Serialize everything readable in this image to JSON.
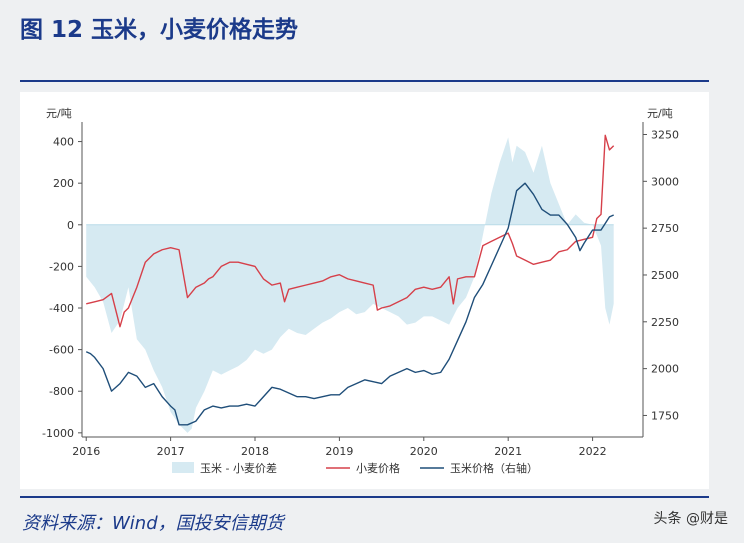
{
  "header": {
    "title": "图 12 玉米，小麦价格走势"
  },
  "footer": {
    "source": "资料来源：Wind，国投安信期货",
    "watermark": "头条 @财是"
  },
  "colors": {
    "spread": "#d6eaf2",
    "wheat": "#d6404a",
    "corn": "#1f4e79",
    "accent": "#1b3a8a"
  },
  "chart_data": {
    "type": "line",
    "left_axis": {
      "unit": "元/吨",
      "ticks": [
        400,
        200,
        0,
        -200,
        -400,
        -600,
        -800,
        -1000
      ],
      "range": [
        -1020,
        470
      ]
    },
    "right_axis": {
      "unit": "元/吨",
      "ticks": [
        3250,
        3000,
        2750,
        2500,
        2250,
        2000,
        1750
      ],
      "range": [
        1635,
        3290
      ]
    },
    "x_axis": {
      "ticks": [
        "2016",
        "2017",
        "2018",
        "2019",
        "2020",
        "2021",
        "2022"
      ],
      "range": [
        2015.95,
        2022.55
      ]
    },
    "legend": {
      "placement": "bottom"
    },
    "series": [
      {
        "name": "玉米 - 小麦价差",
        "type": "area",
        "axis": "left",
        "x": [
          2016.0,
          2016.1,
          2016.2,
          2016.3,
          2016.4,
          2016.5,
          2016.6,
          2016.7,
          2016.8,
          2016.9,
          2017.0,
          2017.1,
          2017.2,
          2017.25,
          2017.3,
          2017.4,
          2017.5,
          2017.6,
          2017.7,
          2017.8,
          2017.9,
          2018.0,
          2018.1,
          2018.2,
          2018.3,
          2018.4,
          2018.5,
          2018.6,
          2018.7,
          2018.8,
          2018.9,
          2019.0,
          2019.1,
          2019.2,
          2019.3,
          2019.4,
          2019.5,
          2019.6,
          2019.7,
          2019.8,
          2019.9,
          2020.0,
          2020.1,
          2020.2,
          2020.3,
          2020.4,
          2020.5,
          2020.6,
          2020.7,
          2020.8,
          2020.9,
          2021.0,
          2021.05,
          2021.1,
          2021.2,
          2021.3,
          2021.4,
          2021.5,
          2021.6,
          2021.7,
          2021.8,
          2021.9,
          2022.0,
          2022.1,
          2022.15,
          2022.2,
          2022.25
        ],
        "values": [
          -250,
          -300,
          -370,
          -520,
          -460,
          -300,
          -550,
          -600,
          -700,
          -780,
          -900,
          -960,
          -1000,
          -980,
          -880,
          -800,
          -700,
          -720,
          -700,
          -680,
          -650,
          -600,
          -620,
          -600,
          -540,
          -500,
          -520,
          -530,
          -500,
          -470,
          -450,
          -420,
          -400,
          -430,
          -420,
          -380,
          -400,
          -420,
          -440,
          -480,
          -470,
          -440,
          -440,
          -460,
          -480,
          -400,
          -350,
          -250,
          -50,
          150,
          300,
          420,
          300,
          380,
          350,
          250,
          380,
          200,
          100,
          0,
          50,
          10,
          0,
          -100,
          -400,
          -480,
          -380
        ]
      },
      {
        "name": "小麦价格",
        "type": "line",
        "axis": "left",
        "x": [
          2016.0,
          2016.1,
          2016.2,
          2016.3,
          2016.4,
          2016.45,
          2016.5,
          2016.6,
          2016.7,
          2016.8,
          2016.9,
          2017.0,
          2017.1,
          2017.2,
          2017.3,
          2017.4,
          2017.45,
          2017.5,
          2017.6,
          2017.7,
          2017.8,
          2017.9,
          2018.0,
          2018.1,
          2018.2,
          2018.3,
          2018.35,
          2018.4,
          2018.5,
          2018.6,
          2018.7,
          2018.8,
          2018.9,
          2019.0,
          2019.1,
          2019.2,
          2019.3,
          2019.4,
          2019.45,
          2019.5,
          2019.6,
          2019.7,
          2019.8,
          2019.9,
          2020.0,
          2020.1,
          2020.2,
          2020.3,
          2020.35,
          2020.4,
          2020.5,
          2020.6,
          2020.7,
          2020.8,
          2020.9,
          2021.0,
          2021.05,
          2021.1,
          2021.2,
          2021.3,
          2021.4,
          2021.5,
          2021.6,
          2021.7,
          2021.8,
          2021.9,
          2022.0,
          2022.05,
          2022.1,
          2022.15,
          2022.2,
          2022.25
        ],
        "values": [
          -380,
          -370,
          -360,
          -330,
          -490,
          -420,
          -400,
          -300,
          -180,
          -140,
          -120,
          -110,
          -120,
          -350,
          -300,
          -280,
          -260,
          -250,
          -200,
          -180,
          -180,
          -190,
          -200,
          -260,
          -290,
          -280,
          -370,
          -310,
          -300,
          -290,
          -280,
          -270,
          -250,
          -240,
          -260,
          -270,
          -280,
          -290,
          -410,
          -400,
          -390,
          -370,
          -350,
          -310,
          -300,
          -310,
          -300,
          -250,
          -380,
          -260,
          -250,
          -250,
          -100,
          -80,
          -60,
          -40,
          -90,
          -150,
          -170,
          -190,
          -180,
          -170,
          -130,
          -120,
          -80,
          -70,
          -60,
          30,
          50,
          430,
          360,
          380
        ]
      },
      {
        "name": "玉米价格（右轴）",
        "type": "line",
        "axis": "right",
        "x": [
          2016.0,
          2016.05,
          2016.1,
          2016.2,
          2016.3,
          2016.4,
          2016.5,
          2016.6,
          2016.7,
          2016.8,
          2016.9,
          2017.0,
          2017.05,
          2017.1,
          2017.2,
          2017.3,
          2017.4,
          2017.5,
          2017.6,
          2017.7,
          2017.8,
          2017.9,
          2018.0,
          2018.1,
          2018.2,
          2018.3,
          2018.4,
          2018.5,
          2018.6,
          2018.7,
          2018.8,
          2018.9,
          2019.0,
          2019.1,
          2019.2,
          2019.3,
          2019.4,
          2019.5,
          2019.6,
          2019.7,
          2019.8,
          2019.9,
          2020.0,
          2020.1,
          2020.2,
          2020.3,
          2020.4,
          2020.5,
          2020.6,
          2020.7,
          2020.8,
          2020.9,
          2021.0,
          2021.05,
          2021.1,
          2021.2,
          2021.3,
          2021.4,
          2021.5,
          2021.6,
          2021.7,
          2021.8,
          2021.85,
          2021.9,
          2022.0,
          2022.1,
          2022.2,
          2022.25
        ],
        "values": [
          2090,
          2080,
          2060,
          2000,
          1880,
          1920,
          1980,
          1960,
          1900,
          1920,
          1850,
          1800,
          1780,
          1700,
          1700,
          1720,
          1780,
          1800,
          1790,
          1800,
          1800,
          1810,
          1800,
          1850,
          1900,
          1890,
          1870,
          1850,
          1850,
          1840,
          1850,
          1860,
          1860,
          1900,
          1920,
          1940,
          1930,
          1920,
          1960,
          1980,
          2000,
          1980,
          1990,
          1970,
          1980,
          2050,
          2150,
          2250,
          2380,
          2450,
          2550,
          2650,
          2750,
          2850,
          2950,
          2990,
          2930,
          2850,
          2820,
          2820,
          2770,
          2700,
          2630,
          2670,
          2740,
          2740,
          2810,
          2820
        ]
      }
    ]
  }
}
